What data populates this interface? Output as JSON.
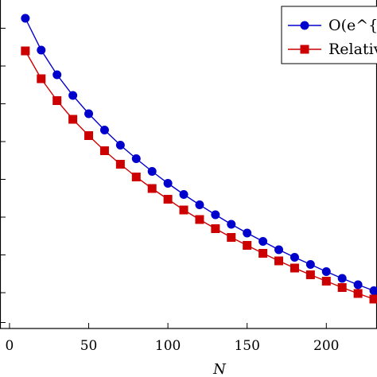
{
  "chart_data": {
    "type": "line",
    "xlabel": "N",
    "ylabel": "",
    "xlim": [
      -6,
      233
    ],
    "xticks": [
      0,
      50,
      100,
      150,
      200
    ],
    "grid": false,
    "legend_position": "top-right",
    "x": [
      10,
      20,
      30,
      40,
      50,
      60,
      70,
      80,
      90,
      100,
      110,
      120,
      130,
      140,
      150,
      160,
      170,
      180,
      190,
      200,
      210,
      220,
      230
    ],
    "series": [
      {
        "name": "O(e^{−√",
        "color": "#0000cc",
        "marker": "circle",
        "values": [
          1.0,
          0.92,
          0.858,
          0.806,
          0.76,
          0.719,
          0.681,
          0.647,
          0.615,
          0.585,
          0.557,
          0.531,
          0.506,
          0.482,
          0.46,
          0.439,
          0.418,
          0.399,
          0.381,
          0.363,
          0.346,
          0.33,
          0.315
        ]
      },
      {
        "name": "Relativ",
        "color": "#cc0000",
        "marker": "square",
        "values": [
          0.918,
          0.848,
          0.793,
          0.746,
          0.705,
          0.667,
          0.633,
          0.601,
          0.572,
          0.545,
          0.518,
          0.494,
          0.471,
          0.449,
          0.429,
          0.409,
          0.39,
          0.372,
          0.355,
          0.339,
          0.323,
          0.308,
          0.294
        ]
      }
    ]
  }
}
